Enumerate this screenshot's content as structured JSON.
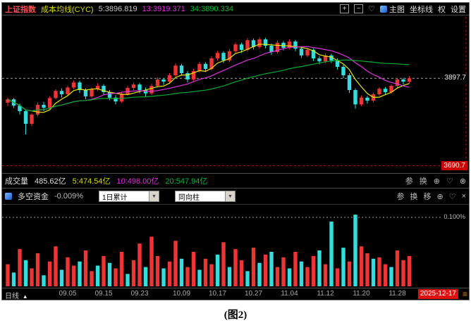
{
  "header": {
    "symbol": "上证指数",
    "indicator": "成本均线(CYC)",
    "ma5": "5:3896.819",
    "ma13": "13:3919.371",
    "ma34": "34:3890.334",
    "main_btn": "主图",
    "coord_btn": "坐标线",
    "rights_btn": "权",
    "settings_btn": "设置"
  },
  "icons": {
    "plus": "+",
    "minus": "−",
    "heart": "♡",
    "zoom": "⊕",
    "circle_close": "⊗",
    "close": "×",
    "dropdown_arrow": "▼",
    "triangle_up": "▲",
    "menu": "≡"
  },
  "main_pane": {
    "price_label": "3897.7",
    "alert_label": "3690.7"
  },
  "volume_pane": {
    "title": "成交量",
    "value": "485.62亿",
    "ma5": "5:474.54亿",
    "ma10": "10:498.00亿",
    "ma20": "20:547.94亿",
    "action_params": "参",
    "action_switch": "换"
  },
  "indicator_pane": {
    "title": "多空资金",
    "value": "-0.009%",
    "period_dropdown": "1日累计",
    "style_dropdown": "同向柱",
    "action_params": "参",
    "action_switch": "换",
    "action_move": "移",
    "grid_label": "0.100%"
  },
  "axis": {
    "period": "日线",
    "dates": [
      "09.05",
      "09.15",
      "09.23",
      "10.09",
      "10.17",
      "10.27",
      "11.04",
      "11.12",
      "11.20",
      "11.28"
    ],
    "date_indices": [
      10,
      16,
      22,
      29,
      35,
      41,
      47,
      53,
      59,
      65
    ],
    "current_date": "2025-12-17"
  },
  "caption": "(图2)",
  "colors": {
    "up": "#ee3535",
    "down": "#35dede",
    "ma": [
      "#e8e800",
      "#dd33dd",
      "#00aa33"
    ],
    "alert": "#cc0000",
    "grid": "#999999",
    "date_badge_bg": "#dd1111"
  },
  "chart_data": [
    {
      "type": "candlestick",
      "title": "上证指数 日线 成本均线(CYC)",
      "price_range": [
        3680,
        4040
      ],
      "last_price": 3897.7,
      "marked_price": 3690.7,
      "ma_periods": [
        5,
        13,
        34
      ],
      "candles": [
        [
          3840,
          3852,
          3832,
          3848
        ],
        [
          3848,
          3851,
          3828,
          3833
        ],
        [
          3833,
          3838,
          3812,
          3820
        ],
        [
          3820,
          3824,
          3765,
          3790
        ],
        [
          3790,
          3815,
          3785,
          3812
        ],
        [
          3812,
          3840,
          3808,
          3835
        ],
        [
          3835,
          3842,
          3820,
          3828
        ],
        [
          3828,
          3855,
          3825,
          3851
        ],
        [
          3851,
          3872,
          3848,
          3868
        ],
        [
          3868,
          3874,
          3852,
          3860
        ],
        [
          3860,
          3880,
          3856,
          3876
        ],
        [
          3876,
          3893,
          3872,
          3888
        ],
        [
          3888,
          3892,
          3863,
          3870
        ],
        [
          3870,
          3874,
          3848,
          3855
        ],
        [
          3855,
          3876,
          3851,
          3872
        ],
        [
          3872,
          3886,
          3868,
          3880
        ],
        [
          3880,
          3884,
          3858,
          3865
        ],
        [
          3865,
          3870,
          3846,
          3852
        ],
        [
          3852,
          3858,
          3836,
          3843
        ],
        [
          3843,
          3866,
          3840,
          3861
        ],
        [
          3861,
          3880,
          3857,
          3875
        ],
        [
          3875,
          3888,
          3870,
          3883
        ],
        [
          3883,
          3887,
          3862,
          3870
        ],
        [
          3870,
          3876,
          3855,
          3862
        ],
        [
          3862,
          3885,
          3858,
          3880
        ],
        [
          3880,
          3900,
          3876,
          3895
        ],
        [
          3895,
          3899,
          3882,
          3890
        ],
        [
          3890,
          3910,
          3886,
          3905
        ],
        [
          3905,
          3933,
          3901,
          3928
        ],
        [
          3928,
          3932,
          3904,
          3910
        ],
        [
          3910,
          3915,
          3888,
          3895
        ],
        [
          3895,
          3920,
          3891,
          3915
        ],
        [
          3915,
          3937,
          3911,
          3932
        ],
        [
          3932,
          3936,
          3913,
          3920
        ],
        [
          3920,
          3950,
          3916,
          3945
        ],
        [
          3945,
          3963,
          3940,
          3958
        ],
        [
          3958,
          3962,
          3934,
          3940
        ],
        [
          3940,
          3967,
          3936,
          3962
        ],
        [
          3962,
          3983,
          3958,
          3978
        ],
        [
          3978,
          3982,
          3958,
          3965
        ],
        [
          3965,
          3993,
          3961,
          3988
        ],
        [
          3988,
          3992,
          3966,
          3972
        ],
        [
          3972,
          3995,
          3968,
          3990
        ],
        [
          3990,
          3994,
          3969,
          3975
        ],
        [
          3975,
          3980,
          3953,
          3960
        ],
        [
          3960,
          3987,
          3956,
          3982
        ],
        [
          3982,
          3986,
          3964,
          3970
        ],
        [
          3970,
          3990,
          3966,
          3985
        ],
        [
          3985,
          3989,
          3962,
          3968
        ],
        [
          3968,
          3973,
          3946,
          3952
        ],
        [
          3952,
          3970,
          3948,
          3965
        ],
        [
          3965,
          3969,
          3939,
          3945
        ],
        [
          3945,
          3950,
          3931,
          3938
        ],
        [
          3938,
          3957,
          3934,
          3952
        ],
        [
          3952,
          3956,
          3934,
          3940
        ],
        [
          3940,
          3945,
          3919,
          3925
        ],
        [
          3925,
          3930,
          3898,
          3905
        ],
        [
          3905,
          3910,
          3863,
          3870
        ],
        [
          3870,
          3874,
          3826,
          3836
        ],
        [
          3836,
          3857,
          3832,
          3852
        ],
        [
          3852,
          3856,
          3838,
          3845
        ],
        [
          3845,
          3864,
          3841,
          3860
        ],
        [
          3860,
          3877,
          3856,
          3873
        ],
        [
          3873,
          3877,
          3858,
          3865
        ],
        [
          3865,
          3884,
          3861,
          3880
        ],
        [
          3880,
          3899,
          3876,
          3895
        ],
        [
          3895,
          3899,
          3883,
          3890
        ],
        [
          3890,
          3903,
          3886,
          3897.7
        ]
      ]
    },
    {
      "type": "bar",
      "title": "多空资金 1日累计 同向柱",
      "unit": "%",
      "ylim": [
        0,
        0.115
      ],
      "grid_value": 0.1,
      "bars": [
        [
          0.032,
          "r"
        ],
        [
          0.02,
          "g"
        ],
        [
          0.054,
          "r"
        ],
        [
          0.038,
          "g"
        ],
        [
          0.026,
          "r"
        ],
        [
          0.048,
          "r"
        ],
        [
          0.016,
          "g"
        ],
        [
          0.036,
          "r"
        ],
        [
          0.058,
          "r"
        ],
        [
          0.024,
          "g"
        ],
        [
          0.042,
          "r"
        ],
        [
          0.03,
          "r"
        ],
        [
          0.036,
          "g"
        ],
        [
          0.052,
          "r"
        ],
        [
          0.022,
          "r"
        ],
        [
          0.03,
          "g"
        ],
        [
          0.044,
          "r"
        ],
        [
          0.034,
          "g"
        ],
        [
          0.026,
          "r"
        ],
        [
          0.05,
          "r"
        ],
        [
          0.018,
          "g"
        ],
        [
          0.038,
          "r"
        ],
        [
          0.062,
          "r"
        ],
        [
          0.028,
          "g"
        ],
        [
          0.072,
          "r"
        ],
        [
          0.044,
          "r"
        ],
        [
          0.026,
          "g"
        ],
        [
          0.036,
          "r"
        ],
        [
          0.066,
          "r"
        ],
        [
          0.04,
          "g"
        ],
        [
          0.028,
          "r"
        ],
        [
          0.05,
          "r"
        ],
        [
          0.024,
          "g"
        ],
        [
          0.04,
          "r"
        ],
        [
          0.032,
          "r"
        ],
        [
          0.046,
          "g"
        ],
        [
          0.064,
          "r"
        ],
        [
          0.028,
          "g"
        ],
        [
          0.054,
          "r"
        ],
        [
          0.038,
          "r"
        ],
        [
          0.022,
          "g"
        ],
        [
          0.056,
          "r"
        ],
        [
          0.034,
          "g"
        ],
        [
          0.046,
          "r"
        ],
        [
          0.05,
          "g"
        ],
        [
          0.028,
          "r"
        ],
        [
          0.042,
          "r"
        ],
        [
          0.026,
          "g"
        ],
        [
          0.05,
          "r"
        ],
        [
          0.036,
          "g"
        ],
        [
          0.028,
          "r"
        ],
        [
          0.044,
          "r"
        ],
        [
          0.052,
          "g"
        ],
        [
          0.032,
          "r"
        ],
        [
          0.094,
          "g"
        ],
        [
          0.026,
          "r"
        ],
        [
          0.056,
          "g"
        ],
        [
          0.036,
          "r"
        ],
        [
          0.104,
          "g"
        ],
        [
          0.058,
          "r"
        ],
        [
          0.048,
          "r"
        ],
        [
          0.04,
          "g"
        ],
        [
          0.042,
          "r"
        ],
        [
          0.032,
          "r"
        ],
        [
          0.028,
          "g"
        ],
        [
          0.052,
          "r"
        ],
        [
          0.038,
          "r"
        ],
        [
          0.044,
          "r"
        ]
      ]
    }
  ]
}
